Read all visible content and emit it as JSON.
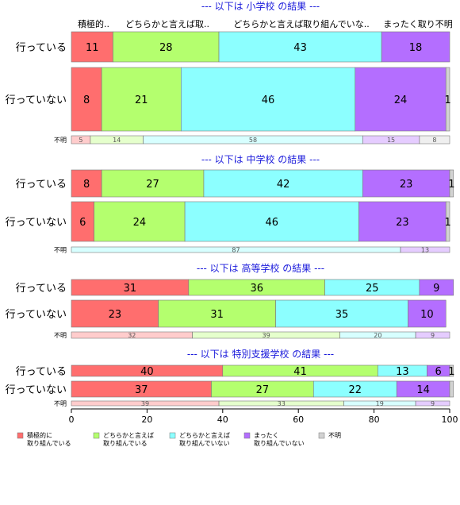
{
  "chart_data": {
    "type": "bar",
    "orientation": "horizontal-stacked-percent",
    "xlim": [
      0,
      100
    ],
    "x_ticks": [
      "0",
      "20",
      "40",
      "60",
      "80",
      "100"
    ],
    "column_headers": [
      "積極的..",
      "どちらかと言えば取..",
      "どちらかと言えば取り組んでいな..",
      "まったく取り不明"
    ],
    "categories": [
      "積極的に取り組んでいる",
      "どちらかと言えば取り組んでいる",
      "どちらかと言えば取り組んでいない",
      "まったく取り組んでいない",
      "不明"
    ],
    "colors": [
      "#ff6e6e",
      "#b4ff6e",
      "#8cffff",
      "#b46eff",
      "#d2d2d2"
    ],
    "panels": [
      {
        "title": "--- 以下は 小学校 の結果 ---",
        "rows": [
          {
            "label": "行っている",
            "values": [
              11,
              28,
              43,
              18,
              0
            ],
            "labels": [
              "11",
              "28",
              "43",
              "18",
              ""
            ]
          },
          {
            "label": "行っていない",
            "values": [
              8,
              21,
              46,
              24,
              1
            ],
            "labels": [
              "8",
              "21",
              "46",
              "24",
              "1"
            ]
          },
          {
            "label": "不明",
            "values": [
              5,
              14,
              58,
              15,
              8
            ],
            "labels": [
              "5",
              "14",
              "58",
              "15",
              "8"
            ]
          }
        ]
      },
      {
        "title": "--- 以下は 中学校 の結果 ---",
        "rows": [
          {
            "label": "行っている",
            "values": [
              8,
              27,
              42,
              23,
              1
            ],
            "labels": [
              "8",
              "27",
              "42",
              "23",
              "1"
            ]
          },
          {
            "label": "行っていない",
            "values": [
              6,
              24,
              46,
              23,
              1
            ],
            "labels": [
              "6",
              "24",
              "46",
              "23",
              "1"
            ]
          },
          {
            "label": "不明",
            "values": [
              0,
              0,
              87,
              13,
              0
            ],
            "labels": [
              "",
              "",
              "87",
              "13",
              ""
            ]
          }
        ]
      },
      {
        "title": "--- 以下は 高等学校 の結果 ---",
        "rows": [
          {
            "label": "行っている",
            "values": [
              31,
              36,
              25,
              9,
              0
            ],
            "labels": [
              "31",
              "36",
              "25",
              "9",
              ""
            ]
          },
          {
            "label": "行っていない",
            "values": [
              23,
              31,
              35,
              10,
              0
            ],
            "labels": [
              "23",
              "31",
              "35",
              "10",
              ""
            ]
          },
          {
            "label": "不明",
            "values": [
              32,
              39,
              20,
              9,
              0
            ],
            "labels": [
              "32",
              "39",
              "20",
              "9",
              ""
            ]
          }
        ]
      },
      {
        "title": "--- 以下は 特別支援学校 の結果 ---",
        "rows": [
          {
            "label": "行っている",
            "values": [
              40,
              41,
              13,
              6,
              1
            ],
            "labels": [
              "40",
              "41",
              "13",
              "6",
              "1"
            ]
          },
          {
            "label": "行っていない",
            "values": [
              37,
              27,
              22,
              14,
              1
            ],
            "labels": [
              "37",
              "27",
              "22",
              "14",
              ""
            ]
          },
          {
            "label": "不明",
            "values": [
              39,
              33,
              19,
              9,
              0
            ],
            "labels": [
              "39",
              "33",
              "19",
              "9",
              ""
            ]
          }
        ]
      }
    ],
    "legend": [
      {
        "lines": [
          "積極的に",
          "取り組んでいる"
        ],
        "color": "#ff6e6e"
      },
      {
        "lines": [
          "どちらかと言えば",
          "取り組んでいる"
        ],
        "color": "#b4ff6e"
      },
      {
        "lines": [
          "どちらかと言えば",
          "取り組んでいない"
        ],
        "color": "#8cffff"
      },
      {
        "lines": [
          "まったく",
          "取り組んでいない"
        ],
        "color": "#b46eff"
      },
      {
        "lines": [
          "不明"
        ],
        "color": "#d2d2d2"
      }
    ],
    "legend_position": "bottom-left"
  }
}
